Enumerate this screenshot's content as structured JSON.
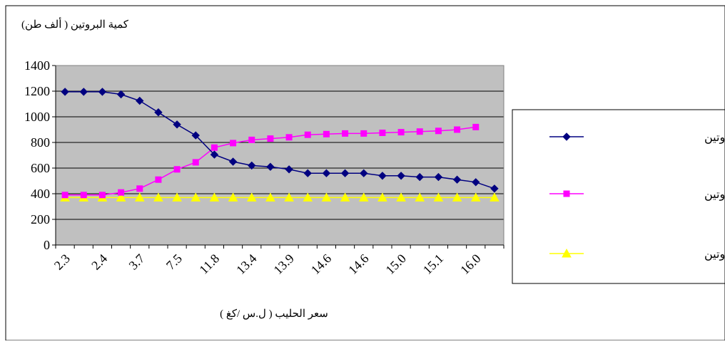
{
  "chart_data": {
    "type": "line",
    "ylabel": "كمية البروتين ( ألف طن)",
    "xlabel": "سعر الحليب ( ل.س /كغ )",
    "ylim": [
      0,
      1400
    ],
    "yticks": [
      0,
      200,
      400,
      600,
      800,
      1000,
      1200,
      1400
    ],
    "grid": true,
    "legend_position": "right",
    "x_tick_labels": [
      "2.3",
      "2.4",
      "3.7",
      "7.5",
      "11.8",
      "13.4",
      "13.9",
      "14.6",
      "14.6",
      "15.0",
      "15.1",
      "16.0"
    ],
    "n_points": 24,
    "plot_background": "#c0c0c0",
    "series": [
      {
        "name": "الطلب على البروتين",
        "color": "#000080",
        "marker": "diamond",
        "values": [
          1195,
          1195,
          1195,
          1175,
          1125,
          1035,
          940,
          855,
          705,
          650,
          620,
          610,
          590,
          560,
          560,
          560,
          560,
          540,
          540,
          530,
          530,
          510,
          490,
          440
        ]
      },
      {
        "name": "العرض من البروتين",
        "color": "#ff00ff",
        "marker": "square",
        "values": [
          390,
          390,
          390,
          410,
          440,
          510,
          590,
          645,
          760,
          795,
          820,
          830,
          840,
          860,
          865,
          870,
          870,
          875,
          880,
          885,
          890,
          900,
          920,
          null
        ]
      },
      {
        "name": "الاحتياج من البروتين",
        "color": "#ffff00",
        "marker": "triangle",
        "values": [
          370,
          370,
          370,
          370,
          370,
          370,
          370,
          370,
          370,
          370,
          370,
          370,
          370,
          370,
          370,
          370,
          370,
          370,
          370,
          370,
          370,
          370,
          370,
          370
        ]
      }
    ]
  }
}
